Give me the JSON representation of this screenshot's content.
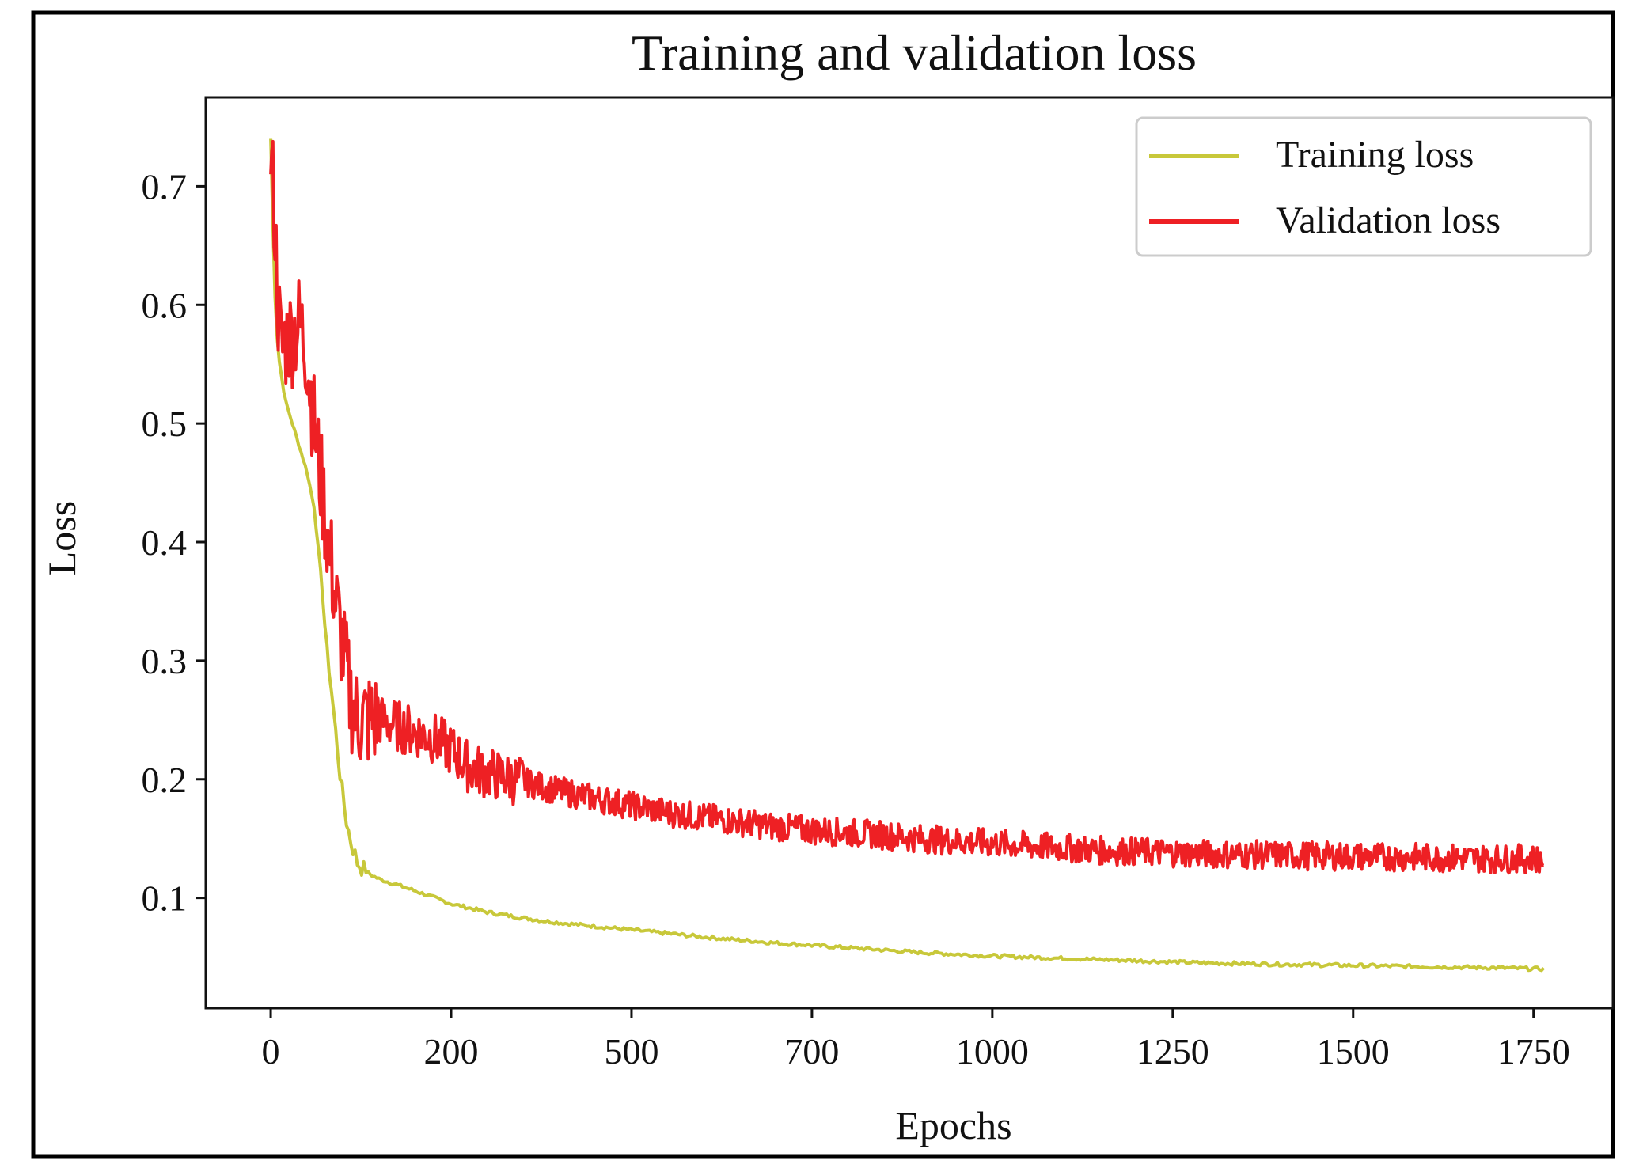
{
  "chart_data": {
    "type": "line",
    "title": "Training and validation loss",
    "xlabel": "Epochs",
    "ylabel": "Loss",
    "xlim": [
      -90,
      1860
    ],
    "ylim": [
      0.007,
      0.775
    ],
    "x_tick_labels": [
      "0",
      "200",
      "500",
      "700",
      "1000",
      "1250",
      "1500",
      "1750"
    ],
    "y_ticks": [
      0.1,
      0.2,
      0.3,
      0.4,
      0.5,
      0.6,
      0.7
    ],
    "y_tick_labels": [
      "0.1",
      "0.2",
      "0.3",
      "0.4",
      "0.5",
      "0.6",
      "0.7"
    ],
    "grid": false,
    "legend_position": "top-right",
    "series": [
      {
        "name": "Training loss",
        "color": "#c8c83a",
        "x": [
          0,
          5,
          10,
          20,
          30,
          40,
          50,
          60,
          70,
          75,
          80,
          85,
          90,
          95,
          100,
          105,
          110,
          115,
          120,
          130,
          140,
          150,
          175,
          200,
          250,
          300,
          350,
          400,
          450,
          500,
          600,
          700,
          800,
          900,
          1000,
          1100,
          1200,
          1300,
          1400,
          1500,
          1600,
          1700,
          1765
        ],
        "y": [
          0.74,
          0.62,
          0.56,
          0.52,
          0.5,
          0.48,
          0.46,
          0.43,
          0.37,
          0.33,
          0.3,
          0.27,
          0.24,
          0.21,
          0.185,
          0.165,
          0.15,
          0.14,
          0.13,
          0.123,
          0.119,
          0.116,
          0.111,
          0.106,
          0.095,
          0.088,
          0.083,
          0.079,
          0.076,
          0.073,
          0.067,
          0.062,
          0.058,
          0.054,
          0.051,
          0.049,
          0.047,
          0.045,
          0.044,
          0.043,
          0.042,
          0.041,
          0.04
        ]
      },
      {
        "name": "Validation loss",
        "color": "#ee2024",
        "x": [
          0,
          5,
          10,
          15,
          20,
          30,
          40,
          50,
          60,
          70,
          80,
          90,
          100,
          110,
          120,
          130,
          150,
          175,
          200,
          225,
          250,
          275,
          300,
          350,
          400,
          450,
          500,
          550,
          600,
          650,
          700,
          750,
          800,
          850,
          900,
          950,
          1000,
          1050,
          1100,
          1150,
          1200,
          1300,
          1400,
          1500,
          1600,
          1700,
          1765
        ],
        "y": [
          0.73,
          0.68,
          0.6,
          0.56,
          0.57,
          0.575,
          0.585,
          0.56,
          0.5,
          0.45,
          0.4,
          0.35,
          0.31,
          0.27,
          0.25,
          0.25,
          0.25,
          0.245,
          0.24,
          0.235,
          0.225,
          0.21,
          0.205,
          0.198,
          0.19,
          0.184,
          0.178,
          0.172,
          0.168,
          0.164,
          0.16,
          0.157,
          0.155,
          0.153,
          0.15,
          0.148,
          0.146,
          0.144,
          0.142,
          0.14,
          0.139,
          0.137,
          0.136,
          0.135,
          0.134,
          0.133,
          0.133
        ]
      }
    ]
  }
}
